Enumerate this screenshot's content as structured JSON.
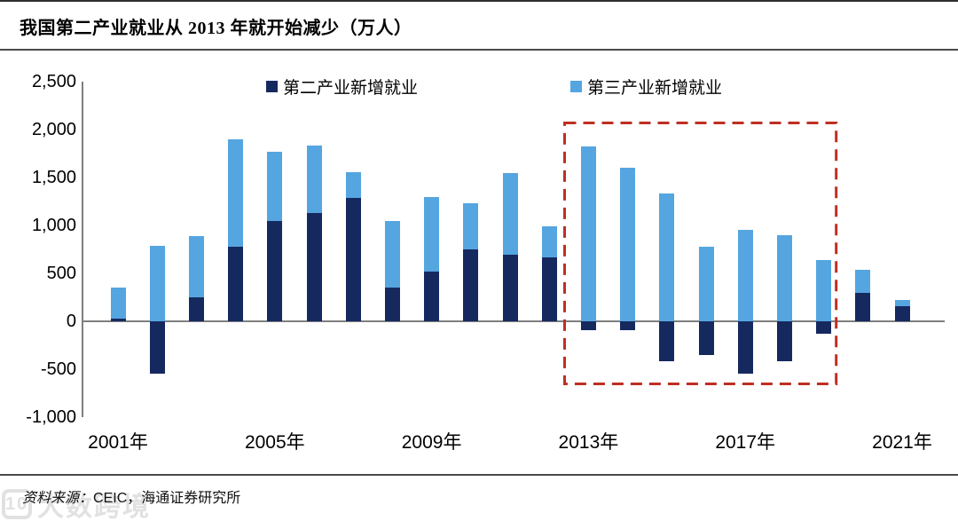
{
  "page": {
    "title": "我国第二产业就业从 2013 年就开始减少（万人）"
  },
  "footer": {
    "label": "资料来源：",
    "value": "CEIC，海通证券研究所"
  },
  "watermark": {
    "logo": "10",
    "text": "大数跨境"
  },
  "chart_data": {
    "type": "bar",
    "stacked": true,
    "title": "我国第二产业就业从 2013 年就开始减少（万人）",
    "unit": "万人",
    "grid": false,
    "legend_position": "top",
    "categories": [
      2001,
      2002,
      2003,
      2004,
      2005,
      2006,
      2007,
      2008,
      2009,
      2010,
      2011,
      2012,
      2013,
      2014,
      2015,
      2016,
      2017,
      2018,
      2019,
      2020,
      2021
    ],
    "series": [
      {
        "name": "第二产业新增就业",
        "color": "#16295F",
        "values": [
          25,
          -550,
          250,
          775,
          1050,
          1130,
          1290,
          355,
          515,
          750,
          690,
          670,
          -90,
          -90,
          -420,
          -350,
          -545,
          -415,
          -130,
          295,
          160
        ]
      },
      {
        "name": "第三产业新增就业",
        "color": "#55A5E0",
        "values": [
          330,
          790,
          640,
          1125,
          715,
          700,
          265,
          690,
          785,
          480,
          860,
          320,
          1820,
          1600,
          1330,
          780,
          950,
          900,
          640,
          245,
          62
        ]
      }
    ],
    "ylim": [
      -1000,
      2500
    ],
    "yticks": [
      2500,
      2000,
      1500,
      1000,
      500,
      0,
      -500,
      -1000
    ],
    "xticks": [
      {
        "label": "2001年",
        "year": 2001
      },
      {
        "label": "2005年",
        "year": 2005
      },
      {
        "label": "2009年",
        "year": 2009
      },
      {
        "label": "2013年",
        "year": 2013
      },
      {
        "label": "2017年",
        "year": 2017
      },
      {
        "label": "2021年",
        "year": 2021
      }
    ],
    "highlight_box": {
      "from_year": 2013,
      "to_year": 2019,
      "y_range": [
        -670,
        2080
      ],
      "color": "#BE2F23",
      "style": "dashed"
    }
  }
}
